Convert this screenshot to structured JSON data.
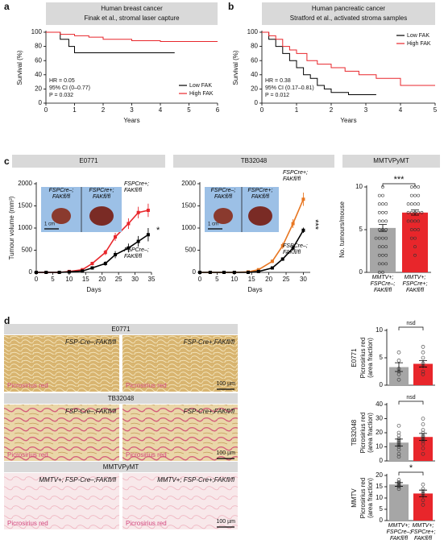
{
  "panels": [
    "a",
    "b",
    "c",
    "d"
  ],
  "chart_data": [
    {
      "type": "line",
      "step": true,
      "title": "Human breast cancer",
      "subtitle": "Finak et al., stromal laser capture",
      "xlabel": "Years",
      "ylabel": "Survival (%)",
      "xlim": [
        0,
        6
      ],
      "xticks": [
        0,
        1,
        2,
        3,
        4,
        5,
        6
      ],
      "ylim": [
        0,
        100
      ],
      "yticks": [
        0,
        20,
        40,
        60,
        80,
        100
      ],
      "annotations": [
        "HR = 0.05",
        "95% CI (0–0.77)",
        "P = 0.032"
      ],
      "legend": "lower right",
      "series": [
        {
          "name": "Low FAK",
          "color": "#000000",
          "x": [
            0,
            0.5,
            0.8,
            1.0,
            4.5
          ],
          "values": [
            100,
            90,
            80,
            71,
            71
          ]
        },
        {
          "name": "High FAK",
          "color": "#e8262b",
          "x": [
            0,
            0.5,
            1,
            1.5,
            2,
            3,
            3.5,
            4,
            6
          ],
          "values": [
            100,
            97,
            95,
            93,
            90,
            88,
            88,
            87,
            87
          ]
        }
      ]
    },
    {
      "type": "line",
      "step": true,
      "title": "Human pancreatic cancer",
      "subtitle": "Stratford et al., activated stroma samples",
      "xlabel": "Years",
      "ylabel": "Survival (%)",
      "xlim": [
        0,
        5
      ],
      "xticks": [
        0,
        1,
        2,
        3,
        4,
        5
      ],
      "ylim": [
        0,
        100
      ],
      "yticks": [
        0,
        20,
        40,
        60,
        80,
        100
      ],
      "annotations": [
        "HR = 0.38",
        "95% CI (0.17–0.81)",
        "P = 0.012"
      ],
      "legend": "upper right",
      "series": [
        {
          "name": "Low FAK",
          "color": "#000000",
          "x": [
            0,
            0.2,
            0.4,
            0.6,
            0.8,
            1,
            1.2,
            1.4,
            1.6,
            1.8,
            2,
            2.5,
            3.3
          ],
          "values": [
            100,
            90,
            80,
            70,
            60,
            50,
            40,
            35,
            25,
            20,
            15,
            12,
            12
          ]
        },
        {
          "name": "High FAK",
          "color": "#e8262b",
          "x": [
            0,
            0.2,
            0.4,
            0.6,
            0.8,
            1,
            1.3,
            1.6,
            2,
            2.4,
            2.8,
            3.3,
            4,
            5
          ],
          "values": [
            100,
            95,
            90,
            80,
            75,
            70,
            60,
            55,
            50,
            45,
            40,
            35,
            25,
            25
          ]
        }
      ]
    },
    {
      "type": "line",
      "title": "E0771",
      "xlabel": "Days",
      "ylabel": "Tumour volume (mm³)",
      "x": [
        0,
        3,
        7,
        10,
        14,
        17,
        21,
        24,
        28,
        31,
        34
      ],
      "xlim": [
        0,
        35
      ],
      "xticks": [
        0,
        5,
        10,
        15,
        20,
        25,
        30,
        35
      ],
      "ylim": [
        0,
        2000
      ],
      "yticks": [
        0,
        500,
        1000,
        1500,
        2000
      ],
      "annotations": [
        "*"
      ],
      "inset": {
        "labels": [
          "FSPCre–; FAKfl/fl",
          "FSPCre+; FAKfl/fl"
        ],
        "scale": "1 cm"
      },
      "series": [
        {
          "name": "FSPCre+; FAKfl/fl",
          "color": "#e8262b",
          "values": [
            0,
            0,
            0,
            20,
            60,
            200,
            450,
            800,
            1100,
            1350,
            1400
          ],
          "errors": [
            0,
            0,
            0,
            10,
            20,
            40,
            60,
            90,
            120,
            130,
            150
          ]
        },
        {
          "name": "FSPCre–; FAKfl/fl",
          "color": "#000000",
          "values": [
            0,
            0,
            0,
            10,
            30,
            100,
            200,
            400,
            550,
            700,
            850
          ],
          "errors": [
            0,
            0,
            0,
            5,
            15,
            30,
            50,
            80,
            100,
            120,
            150
          ]
        }
      ]
    },
    {
      "type": "line",
      "title": "TB32048",
      "x": [
        0,
        3,
        7,
        10,
        14,
        17,
        21,
        24,
        27,
        30
      ],
      "xlim": [
        0,
        32
      ],
      "xticks": [
        0,
        5,
        10,
        15,
        20,
        25,
        30
      ],
      "xlabel": "Days",
      "ylim": [
        0,
        2000
      ],
      "yticks": [
        0,
        500,
        1000,
        1500,
        2000
      ],
      "annotations": [
        "***"
      ],
      "inset": {
        "labels": [
          "FSPCre–; FAKfl/fl",
          "FSPCre+; FAKfl/fl"
        ],
        "scale": "1 cm"
      },
      "series": [
        {
          "name": "FSPCre+; FAKfl/fl",
          "color": "#e87722",
          "values": [
            0,
            0,
            0,
            0,
            10,
            60,
            250,
            600,
            1100,
            1650
          ],
          "errors": [
            0,
            0,
            0,
            0,
            5,
            15,
            40,
            70,
            100,
            150
          ]
        },
        {
          "name": "FSPCre–; FAKfl/fl",
          "color": "#000000",
          "values": [
            0,
            0,
            0,
            0,
            0,
            20,
            100,
            300,
            550,
            950
          ],
          "errors": [
            0,
            0,
            0,
            0,
            0,
            10,
            20,
            40,
            50,
            60
          ]
        }
      ]
    },
    {
      "type": "bar",
      "title": "MMTVPyMT",
      "ylabel": "No. tumours/mouse",
      "ylim": [
        0,
        10
      ],
      "yticks": [
        0,
        5,
        10
      ],
      "categories": [
        "MMTV+; FSPCre–; FAKfl/fl",
        "MMTV+; FSPCre+; FAKfl/fl"
      ],
      "colors": [
        "#a6a6a6",
        "#e8262b"
      ],
      "values": [
        5.2,
        7.0
      ],
      "errors": [
        0.4,
        0.3
      ],
      "significance": "***",
      "points": [
        [
          0,
          0,
          1,
          1,
          1,
          2,
          2,
          2,
          3,
          3,
          3,
          4,
          4,
          4,
          4,
          5,
          5,
          5,
          6,
          6,
          6,
          7,
          7,
          7,
          8,
          8,
          8,
          9,
          9,
          10
        ],
        [
          2,
          3,
          4,
          4,
          5,
          5,
          5,
          6,
          6,
          6,
          6,
          7,
          7,
          7,
          7,
          7,
          8,
          8,
          8,
          8,
          9,
          9,
          9,
          10,
          10,
          10
        ]
      ]
    },
    {
      "type": "bar",
      "title": "E0771",
      "ylabel": [
        "Picrosirius red",
        "(area fraction)"
      ],
      "ylim": [
        0,
        10
      ],
      "yticks": [
        0,
        5,
        10
      ],
      "colors": [
        "#a6a6a6",
        "#e8262b"
      ],
      "values": [
        3.3,
        3.9
      ],
      "errors": [
        0.8,
        0.6
      ],
      "significance": "nsd",
      "points": [
        [
          1,
          2,
          2.5,
          3,
          4.5,
          6
        ],
        [
          2,
          2.5,
          3.5,
          4,
          5,
          6,
          7
        ]
      ]
    },
    {
      "type": "bar",
      "title": "TB32048",
      "ylabel": [
        "Picrosirius red",
        "(area fraction)"
      ],
      "ylim": [
        0,
        40
      ],
      "yticks": [
        0,
        10,
        20,
        30,
        40
      ],
      "colors": [
        "#a6a6a6",
        "#e8262b"
      ],
      "values": [
        13,
        17
      ],
      "errors": [
        2.5,
        2.5
      ],
      "significance": "nsd",
      "points": [
        [
          3,
          5,
          8,
          10,
          11,
          12,
          13,
          14,
          15,
          16,
          18,
          20,
          25
        ],
        [
          5,
          9,
          12,
          14,
          15,
          16,
          17,
          18,
          20,
          22,
          26,
          30
        ]
      ]
    },
    {
      "type": "bar",
      "title": "MMTV",
      "ylabel": [
        "Picrosirius red",
        "(area fraction)"
      ],
      "ylim": [
        0,
        20
      ],
      "yticks": [
        0,
        5,
        10,
        15,
        20
      ],
      "categories": [
        "MMTV+; FSPCre–; FAKfl/fl",
        "MMTV+; FSPCre+; FAKfl/fl"
      ],
      "colors": [
        "#a6a6a6",
        "#e8262b"
      ],
      "values": [
        16,
        12
      ],
      "errors": [
        0.8,
        1.5
      ],
      "significance": "*",
      "points": [
        [
          14,
          15,
          15.5,
          16,
          16.5,
          17,
          18
        ],
        [
          7,
          9,
          11,
          12,
          13,
          14,
          16
        ]
      ]
    }
  ],
  "micrographs": [
    {
      "title": "E0771",
      "panels": [
        {
          "label": "FSP-Cre–;FAKfl/fl",
          "stain": "Picrosirius red"
        },
        {
          "label": "FSP-Cre+;FAKfl/fl",
          "stain": "Picrosirius red",
          "scale": "100 µm"
        }
      ]
    },
    {
      "title": "TB32048",
      "panels": [
        {
          "label": "FSP-Cre–;FAKfl/fl",
          "stain": "Picrosirius red"
        },
        {
          "label": "FSP-Cre+;FAKfl/fl",
          "stain": "Picrosirius red",
          "scale": "100 µm"
        }
      ]
    },
    {
      "title": "MMTVPyMT",
      "panels": [
        {
          "label": "MMTV+; FSP-Cre–;FAKfl/fl",
          "stain": "Picrosirius red"
        },
        {
          "label": "MMTV+; FSP-Cre+;FAKfl/fl",
          "stain": "Picrosirius red",
          "scale": "100 µm"
        }
      ]
    }
  ]
}
